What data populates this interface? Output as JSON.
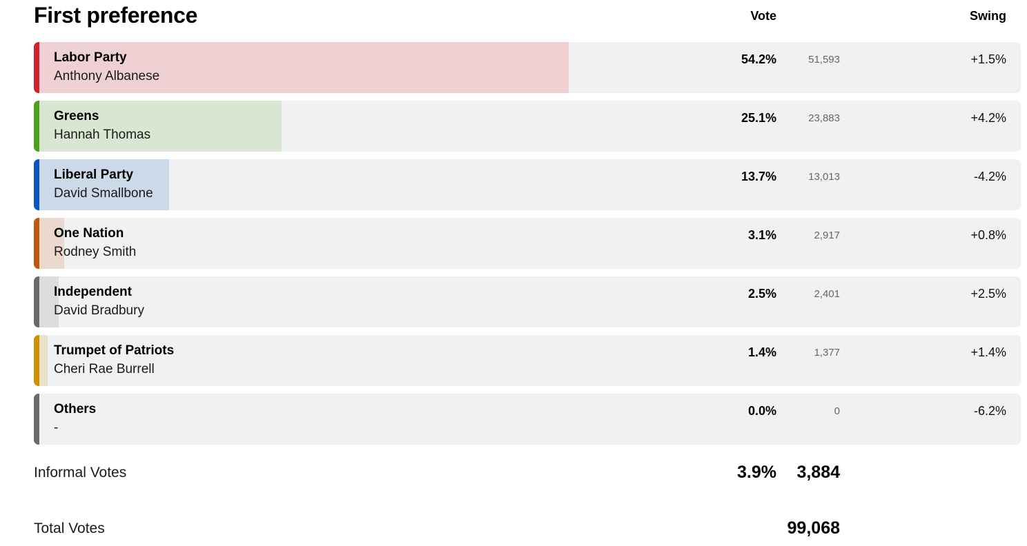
{
  "title": "First preference",
  "columns": {
    "vote": "Vote",
    "swing": "Swing"
  },
  "chart_data": {
    "type": "bar",
    "title": "First preference",
    "categories": [
      "Labor Party",
      "Greens",
      "Liberal Party",
      "One Nation",
      "Independent",
      "Trumpet of Patriots",
      "Others"
    ],
    "candidates": [
      "Anthony Albanese",
      "Hannah Thomas",
      "David Smallbone",
      "Rodney Smith",
      "David Bradbury",
      "Cheri Rae Burrell",
      "-"
    ],
    "values": [
      54.2,
      25.1,
      13.7,
      3.1,
      2.5,
      1.4,
      0.0
    ],
    "votes": [
      51593,
      23883,
      13013,
      2917,
      2401,
      1377,
      0
    ],
    "swing": [
      1.5,
      4.2,
      -4.2,
      0.8,
      2.5,
      1.4,
      -6.2
    ],
    "xlim": [
      0,
      100
    ]
  },
  "rows": [
    {
      "party": "Labor Party",
      "candidate": "Anthony Albanese",
      "pct": "54.2%",
      "votes": "51,593",
      "swing": "+1.5%",
      "value": 54.2,
      "color": "#d3222e",
      "fill": "#efd1d4"
    },
    {
      "party": "Greens",
      "candidate": "Hannah Thomas",
      "pct": "25.1%",
      "votes": "23,883",
      "swing": "+4.2%",
      "value": 25.1,
      "color": "#4ea11a",
      "fill": "#d9e6d1"
    },
    {
      "party": "Liberal Party",
      "candidate": "David Smallbone",
      "pct": "13.7%",
      "votes": "13,013",
      "swing": "-4.2%",
      "value": 13.7,
      "color": "#0d55c1",
      "fill": "#ccd9e8"
    },
    {
      "party": "One Nation",
      "candidate": "Rodney Smith",
      "pct": "3.1%",
      "votes": "2,917",
      "swing": "+0.8%",
      "value": 3.1,
      "color": "#c45510",
      "fill": "#ead9cc"
    },
    {
      "party": "Independent",
      "candidate": "David Bradbury",
      "pct": "2.5%",
      "votes": "2,401",
      "swing": "+2.5%",
      "value": 2.5,
      "color": "#6b6b6b",
      "fill": "#dcdddd"
    },
    {
      "party": "Trumpet of Patriots",
      "candidate": "Cheri Rae Burrell",
      "pct": "1.4%",
      "votes": "1,377",
      "swing": "+1.4%",
      "value": 1.4,
      "color": "#d19000",
      "fill": "#ebe2cb"
    },
    {
      "party": "Others",
      "candidate": "-",
      "pct": "0.0%",
      "votes": "0",
      "swing": "-6.2%",
      "value": 0.0,
      "color": "#6b6b6b",
      "fill": "#dcdddd"
    }
  ],
  "informal": {
    "label": "Informal Votes",
    "pct": "3.9%",
    "votes": "3,884"
  },
  "total": {
    "label": "Total Votes",
    "votes": "99,068"
  }
}
